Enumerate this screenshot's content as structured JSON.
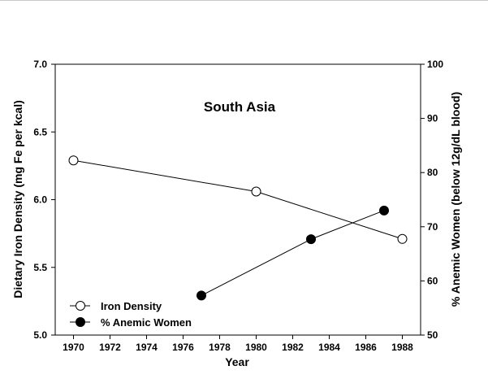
{
  "chart_data": {
    "type": "line",
    "title": "South Asia",
    "xlabel": "Year",
    "ylabel_left": "Dietary Iron Density (mg Fe per kcal)",
    "ylabel_right": "% Anemic Women (below 12g/dL blood)",
    "xlim": [
      1969,
      1989
    ],
    "x_ticks": [
      1970,
      1972,
      1974,
      1976,
      1978,
      1980,
      1982,
      1984,
      1986,
      1988
    ],
    "ylim_left": [
      5.0,
      7.0
    ],
    "y_ticks_left": [
      "5.0",
      "5.5",
      "6.0",
      "6.5",
      "7.0"
    ],
    "ylim_right": [
      50,
      100
    ],
    "y_ticks_right": [
      "50",
      "60",
      "70",
      "80",
      "90",
      "100"
    ],
    "grid": false,
    "legend_position": "bottom-left",
    "series": [
      {
        "name": "Iron Density",
        "axis": "left",
        "marker": "open-circle",
        "x": [
          1970,
          1980,
          1988
        ],
        "y": [
          6.29,
          6.06,
          5.71
        ]
      },
      {
        "name": "% Anemic Women",
        "axis": "right",
        "marker": "filled-circle",
        "x": [
          1977,
          1983,
          1987
        ],
        "y": [
          57.3,
          67.7,
          73.0
        ]
      }
    ]
  }
}
